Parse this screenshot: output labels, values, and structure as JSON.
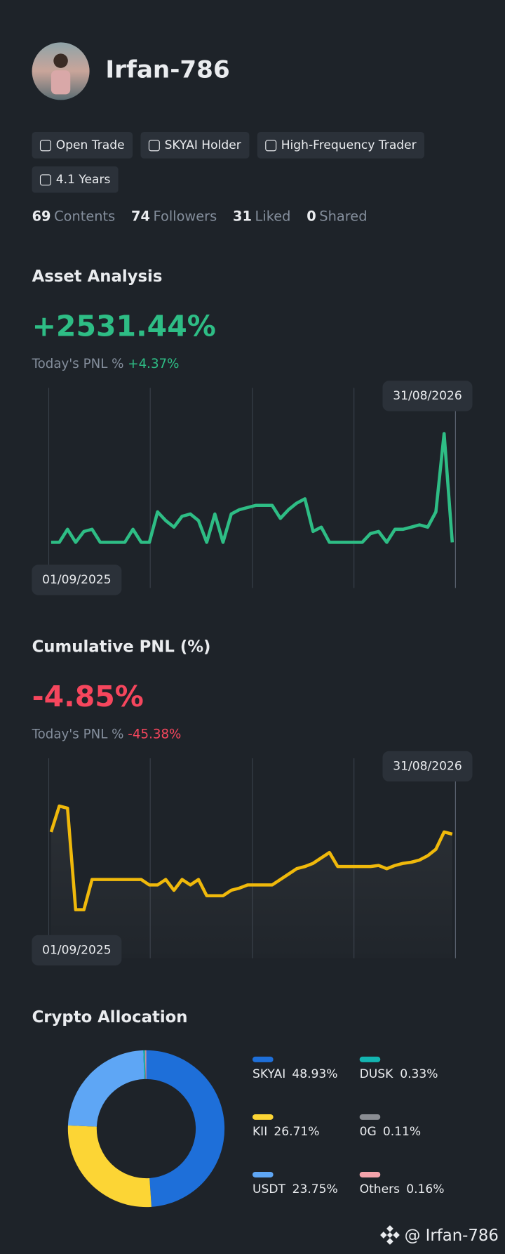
{
  "profile": {
    "name": "Irfan-786",
    "tags": [
      "Open Trade",
      "SKYAI Holder",
      "High-Frequency Trader",
      "4.1 Years"
    ],
    "stats": [
      {
        "count": 69,
        "label": "Contents"
      },
      {
        "count": 74,
        "label": "Followers"
      },
      {
        "count": 31,
        "label": "Liked"
      },
      {
        "count": 0,
        "label": "Shared"
      }
    ]
  },
  "chart_data": [
    {
      "type": "line",
      "title": "Asset Analysis",
      "summary": {
        "value_label": "+2531.44%",
        "today_label": "Today's PNL %",
        "today_value": "+4.37%",
        "tone": "up"
      },
      "categories": [
        "01/09/2025",
        null,
        null,
        null,
        null,
        null,
        null,
        null,
        null,
        null,
        null,
        null,
        null,
        null,
        null,
        null,
        null,
        null,
        null,
        null,
        null,
        null,
        null,
        null,
        null,
        null,
        null,
        null,
        null,
        null,
        null,
        null,
        null,
        null,
        null,
        null,
        null,
        null,
        null,
        null,
        null,
        null,
        null,
        null,
        null,
        null,
        null,
        null,
        null,
        "31/08/2026"
      ],
      "series": [
        {
          "color": "#2ebd85",
          "values": [
            0,
            0,
            12,
            0,
            10,
            12,
            0,
            0,
            0,
            0,
            12,
            0,
            0,
            28,
            20,
            14,
            24,
            26,
            20,
            0,
            26,
            0,
            26,
            30,
            32,
            34,
            34,
            34,
            22,
            30,
            36,
            40,
            10,
            14,
            0,
            0,
            0,
            0,
            0,
            8,
            10,
            0,
            12,
            12,
            14,
            16,
            14,
            28,
            100,
            0
          ]
        }
      ],
      "ylim": [
        0,
        100
      ]
    },
    {
      "type": "area",
      "title": "Cumulative PNL (%)",
      "summary": {
        "value_label": "-4.85%",
        "today_label": "Today's PNL %",
        "today_value": "-45.38%",
        "tone": "down"
      },
      "categories": [
        "01/09/2025",
        null,
        null,
        null,
        null,
        null,
        null,
        null,
        null,
        null,
        null,
        null,
        null,
        null,
        null,
        null,
        null,
        null,
        null,
        null,
        null,
        null,
        null,
        null,
        null,
        null,
        null,
        null,
        null,
        null,
        null,
        null,
        null,
        null,
        null,
        null,
        null,
        null,
        null,
        null,
        null,
        null,
        null,
        null,
        null,
        null,
        null,
        null,
        null,
        "31/08/2026"
      ],
      "series": [
        {
          "color": "#f0b90b",
          "values": [
            74,
            98,
            96,
            2,
            2,
            30,
            30,
            30,
            30,
            30,
            30,
            30,
            25,
            25,
            30,
            20,
            30,
            25,
            30,
            15,
            15,
            15,
            20,
            22,
            25,
            25,
            25,
            25,
            30,
            35,
            40,
            42,
            45,
            50,
            55,
            42,
            42,
            42,
            42,
            42,
            43,
            40,
            43,
            45,
            46,
            48,
            52,
            58,
            74,
            72
          ]
        }
      ],
      "ylim": [
        0,
        100
      ]
    },
    {
      "type": "donut",
      "title": "Crypto Allocation",
      "categories": [
        "SKYAI",
        "KII",
        "USDT",
        "DUSK",
        "0G",
        "Others"
      ],
      "values": [
        48.93,
        26.71,
        23.75,
        0.33,
        0.11,
        0.16
      ],
      "value_labels": [
        "48.93%",
        "26.71%",
        "23.75%",
        "0.33%",
        "0.11%",
        "0.16%"
      ],
      "colors": [
        "#1e6fd9",
        "#fcd535",
        "#5ea6f5",
        "#13b5b1",
        "#8a8d93",
        "#f4a3ab"
      ]
    }
  ],
  "footer": {
    "handle": "@ Irfan-786"
  }
}
